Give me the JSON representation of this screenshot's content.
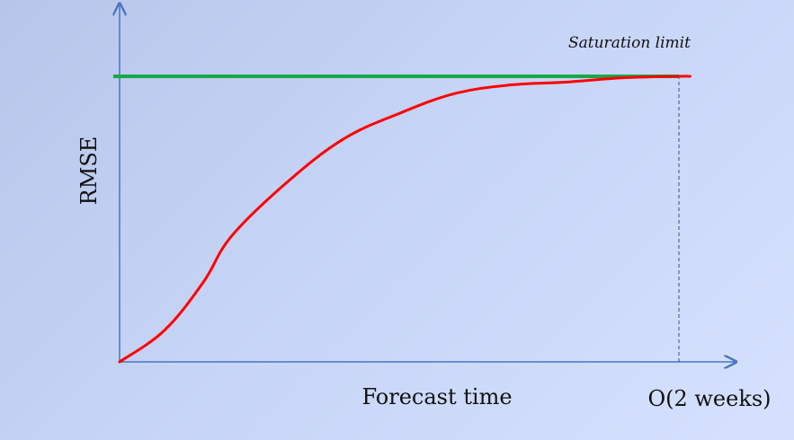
{
  "chart_data": {
    "type": "line",
    "title": "",
    "xlabel": "Forecast time",
    "ylabel": "RMSE",
    "x_tick_label": "O(2 weeks)",
    "series": [
      {
        "name": "",
        "color": "#ff0000",
        "x": [
          0,
          0.08,
          0.15,
          0.2,
          0.3,
          0.4,
          0.5,
          0.6,
          0.7,
          0.8,
          0.9,
          1.0,
          1.02
        ],
        "y": [
          0,
          0.11,
          0.28,
          0.44,
          0.63,
          0.78,
          0.87,
          0.94,
          0.97,
          0.98,
          0.995,
          1.0,
          1.0
        ]
      }
    ],
    "reference_line": {
      "label": "Saturation limit",
      "y": 1.0,
      "color": "#18a84a"
    },
    "xlim": [
      0,
      1.1
    ],
    "ylim": [
      0,
      1.25
    ],
    "grid": false,
    "axis_color": "#4a74c2"
  }
}
